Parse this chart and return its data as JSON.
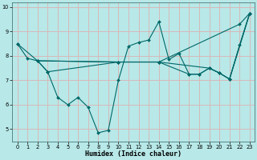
{
  "xlabel": "Humidex (Indice chaleur)",
  "bg_color": "#b8e8e8",
  "grid_color": "#d8b8b8",
  "line_color": "#006868",
  "xlim": [
    -0.5,
    23.5
  ],
  "ylim": [
    4.5,
    10.2
  ],
  "xticks": [
    0,
    1,
    2,
    3,
    4,
    5,
    6,
    7,
    8,
    9,
    10,
    11,
    12,
    13,
    14,
    15,
    16,
    17,
    18,
    19,
    20,
    21,
    22,
    23
  ],
  "yticks": [
    5,
    6,
    7,
    8,
    9,
    10
  ],
  "lines": [
    {
      "x": [
        0,
        1,
        2,
        3,
        4,
        5,
        6,
        7,
        8,
        9,
        10,
        11,
        12,
        13,
        14,
        15,
        16,
        17,
        18,
        19,
        20,
        21,
        22,
        23
      ],
      "y": [
        8.5,
        7.9,
        7.8,
        7.35,
        6.3,
        6.0,
        6.3,
        5.9,
        4.85,
        4.95,
        7.0,
        8.4,
        8.55,
        8.65,
        9.4,
        7.85,
        8.1,
        7.25,
        7.25,
        7.5,
        7.3,
        7.05,
        8.45,
        9.75
      ]
    },
    {
      "x": [
        0,
        2,
        10,
        14,
        22,
        23
      ],
      "y": [
        8.5,
        7.8,
        7.75,
        7.75,
        9.3,
        9.75
      ]
    },
    {
      "x": [
        2,
        3,
        10,
        14,
        17,
        18,
        19,
        20,
        21,
        23
      ],
      "y": [
        7.8,
        7.35,
        7.75,
        7.75,
        7.25,
        7.25,
        7.5,
        7.3,
        7.05,
        9.75
      ]
    },
    {
      "x": [
        2,
        10,
        14,
        19,
        20,
        21,
        23
      ],
      "y": [
        7.8,
        7.75,
        7.75,
        7.5,
        7.3,
        7.05,
        9.75
      ]
    }
  ]
}
